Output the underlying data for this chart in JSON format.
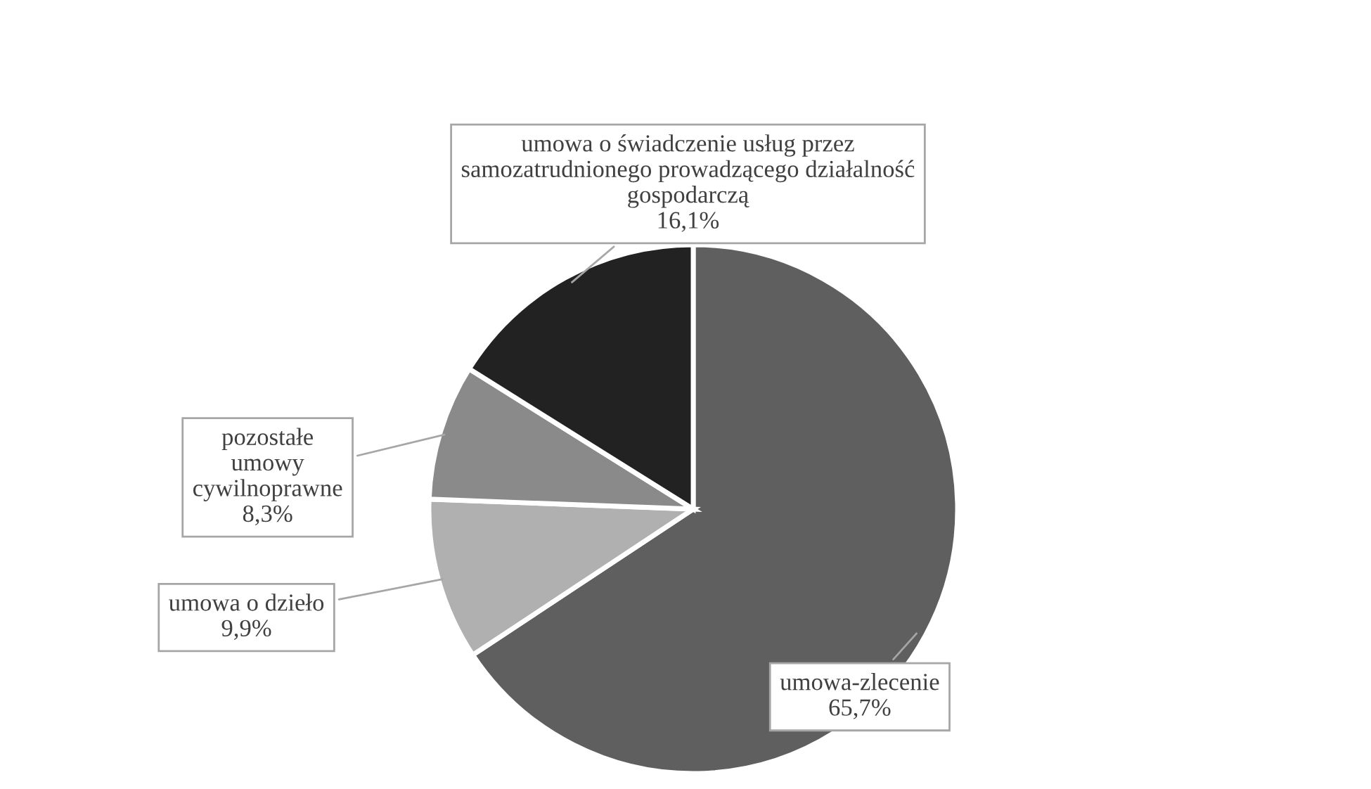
{
  "chart_data": {
    "type": "pie",
    "categories": [
      "umowa-zlecenie",
      "umowa o dzieło",
      "pozostałe\numowy\ncywilnoprawne",
      "umowa o świadczenie usług przez\nsamozatrudnionego prowadzącego działalność\ngospodarczą"
    ],
    "values": [
      65.7,
      9.9,
      8.3,
      16.1
    ],
    "value_labels": [
      "65,7%",
      "9,9%",
      "8,3%",
      "16,1%"
    ],
    "colors": [
      "#5f5f5f",
      "#b0b0b0",
      "#8a8a8a",
      "#222222"
    ],
    "legend": false
  }
}
